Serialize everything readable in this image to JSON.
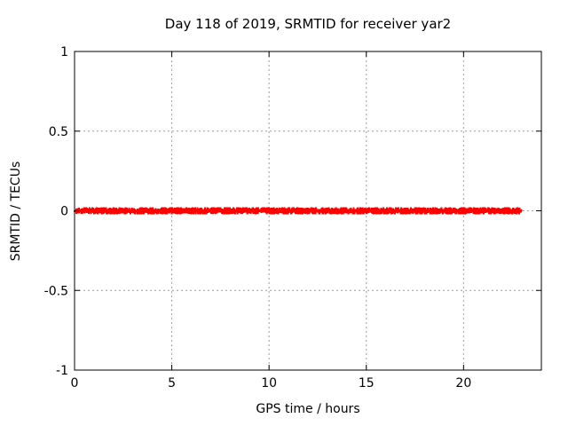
{
  "figure": {
    "background": "#ffffff"
  },
  "chart_data": {
    "type": "scatter",
    "title": "Day 118 of 2019, SRMTID for receiver yar2",
    "xlabel": "GPS time / hours",
    "ylabel": "SRMTID / TECUs",
    "xlim": [
      0,
      24
    ],
    "ylim": [
      -1,
      1
    ],
    "grid": true,
    "legend": "none",
    "marker": "plus",
    "marker_color": "#ff0000",
    "grid_color": "#9e9e9e",
    "axis_color": "#000000",
    "text_color": "#000000",
    "xticks": [
      {
        "v": 0,
        "label": "0"
      },
      {
        "v": 5,
        "label": "5"
      },
      {
        "v": 10,
        "label": "10"
      },
      {
        "v": 15,
        "label": "15"
      },
      {
        "v": 20,
        "label": "20"
      }
    ],
    "yticks": [
      {
        "v": 1,
        "label": "1"
      },
      {
        "v": 0.5,
        "label": "0.5"
      },
      {
        "v": 0,
        "label": "0"
      },
      {
        "v": -0.5,
        "label": "-0.5"
      },
      {
        "v": -1,
        "label": "-1"
      }
    ],
    "series": [
      {
        "name": "SRMTID",
        "value_y": 0,
        "x_start": 0.1,
        "x_end": 22.88,
        "segments": [
          [
            0.1,
            0.28,
            0.05
          ],
          [
            0.33,
            0.6,
            0.04
          ],
          [
            0.66,
            0.78,
            0.06
          ],
          [
            0.85,
            1.02,
            0.05
          ],
          [
            1.06,
            1.26,
            0.03
          ],
          [
            1.3,
            1.55,
            0.02
          ],
          [
            1.62,
            1.7,
            0.04
          ],
          [
            1.76,
            2.14,
            0.02
          ],
          [
            2.2,
            2.44,
            0.04
          ],
          [
            2.5,
            2.68,
            0.02
          ],
          [
            2.82,
            2.95,
            0.06
          ],
          [
            3.02,
            3.14,
            0.05
          ],
          [
            3.2,
            3.28,
            0.04
          ],
          [
            3.34,
            3.56,
            0.02
          ],
          [
            3.62,
            3.74,
            0.05
          ],
          [
            3.8,
            4.08,
            0.02
          ],
          [
            4.2,
            4.34,
            0.06
          ],
          [
            4.42,
            4.76,
            0.02
          ],
          [
            4.86,
            5.08,
            0.04
          ],
          [
            5.16,
            5.5,
            0.02
          ],
          [
            5.58,
            5.78,
            0.05
          ],
          [
            5.86,
            6.22,
            0.02
          ],
          [
            6.32,
            6.54,
            0.02
          ],
          [
            6.62,
            6.88,
            0.04
          ],
          [
            7.0,
            7.34,
            0.02
          ],
          [
            7.42,
            7.58,
            0.05
          ],
          [
            7.66,
            8.0,
            0.02
          ],
          [
            8.06,
            8.28,
            0.04
          ],
          [
            8.36,
            8.7,
            0.02
          ],
          [
            8.8,
            9.08,
            0.05
          ],
          [
            9.16,
            9.44,
            0.02
          ],
          [
            9.62,
            9.78,
            0.06
          ],
          [
            9.86,
            10.3,
            0.02
          ],
          [
            10.36,
            10.58,
            0.04
          ],
          [
            10.66,
            11.04,
            0.02
          ],
          [
            11.12,
            11.28,
            0.05
          ],
          [
            11.36,
            11.74,
            0.02
          ],
          [
            11.82,
            12.08,
            0.04
          ],
          [
            12.16,
            12.42,
            0.02
          ],
          [
            12.55,
            12.62,
            0.04
          ],
          [
            12.7,
            13.0,
            0.02
          ],
          [
            13.08,
            13.3,
            0.04
          ],
          [
            13.38,
            13.58,
            0.02
          ],
          [
            13.66,
            13.98,
            0.02
          ],
          [
            14.1,
            14.24,
            0.06
          ],
          [
            14.3,
            14.44,
            0.05
          ],
          [
            14.52,
            14.88,
            0.02
          ],
          [
            14.96,
            15.18,
            0.04
          ],
          [
            15.26,
            15.64,
            0.02
          ],
          [
            15.72,
            15.92,
            0.05
          ],
          [
            16.0,
            16.38,
            0.02
          ],
          [
            16.46,
            16.68,
            0.04
          ],
          [
            16.76,
            17.14,
            0.02
          ],
          [
            17.22,
            17.42,
            0.06
          ],
          [
            17.5,
            17.88,
            0.02
          ],
          [
            17.96,
            18.18,
            0.04
          ],
          [
            18.26,
            18.64,
            0.02
          ],
          [
            18.72,
            18.92,
            0.05
          ],
          [
            19.04,
            19.38,
            0.02
          ],
          [
            19.48,
            19.66,
            0.04
          ],
          [
            19.76,
            20.14,
            0.02
          ],
          [
            20.22,
            20.42,
            0.05
          ],
          [
            20.5,
            20.88,
            0.02
          ],
          [
            20.96,
            21.18,
            0.04
          ],
          [
            21.26,
            21.62,
            0.02
          ],
          [
            21.72,
            21.92,
            0.05
          ],
          [
            22.0,
            22.38,
            0.02
          ],
          [
            22.46,
            22.64,
            0.04
          ],
          [
            22.7,
            22.88,
            0.02
          ]
        ]
      }
    ]
  }
}
